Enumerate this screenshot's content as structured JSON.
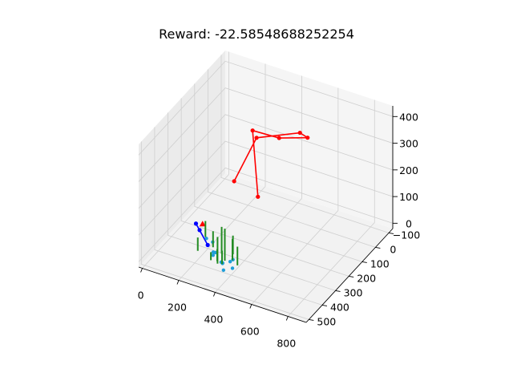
{
  "figure": {
    "title": "Reward: -22.58548688252254"
  },
  "chart_data": {
    "type": "scatter3d",
    "title": "Reward: -22.58548688252254",
    "x_ticks": [
      "0",
      "200",
      "400",
      "600",
      "800"
    ],
    "y_ticks": [
      "−100",
      "0",
      "100",
      "200",
      "300",
      "400",
      "500"
    ],
    "z_ticks": [
      "0",
      "100",
      "200",
      "300",
      "400"
    ],
    "xlim": [
      -20,
      900
    ],
    "ylim": [
      -130,
      520
    ],
    "zlim": [
      -20,
      440
    ],
    "grid": true,
    "series": [
      {
        "kind": "line",
        "color": "#ff0000",
        "points": [
          [
            380,
            350,
            300
          ],
          [
            430,
            250,
            420
          ],
          [
            500,
            20,
            330
          ],
          [
            520,
            -10,
            300
          ],
          [
            360,
            -15,
            260
          ],
          [
            240,
            20,
            280
          ],
          [
            240,
            -20,
            10
          ]
        ]
      },
      {
        "kind": "line",
        "color": "#0000ff",
        "points": [
          [
            280,
            500,
            200
          ],
          [
            330,
            480,
            120
          ],
          [
            300,
            500,
            180
          ]
        ]
      },
      {
        "kind": "marker",
        "color": "#ff0000",
        "marker": "triangle",
        "points": [
          [
            320,
            505,
            210
          ]
        ]
      },
      {
        "kind": "scatter",
        "color": "#1f9ed8",
        "points": [
          [
            330,
            490,
            150
          ],
          [
            360,
            480,
            100
          ],
          [
            330,
            440,
            60
          ],
          [
            360,
            420,
            30
          ],
          [
            380,
            430,
            10
          ],
          [
            400,
            390,
            0
          ],
          [
            360,
            410,
            20
          ],
          [
            390,
            450,
            50
          ],
          [
            350,
            470,
            130
          ],
          [
            410,
            400,
            40
          ],
          [
            380,
            380,
            15
          ],
          [
            350,
            450,
            80
          ]
        ]
      },
      {
        "kind": "segments",
        "color": "#228b22",
        "segments": [
          [
            [
              340,
              420,
              20
            ],
            [
              340,
              420,
              120
            ]
          ],
          [
            [
              310,
              470,
              140
            ],
            [
              310,
              470,
              200
            ]
          ],
          [
            [
              330,
              440,
              90
            ],
            [
              330,
              440,
              150
            ]
          ],
          [
            [
              380,
              420,
              40
            ],
            [
              380,
              420,
              160
            ]
          ],
          [
            [
              400,
              390,
              30
            ],
            [
              400,
              390,
              110
            ]
          ],
          [
            [
              370,
              430,
              70
            ],
            [
              370,
              430,
              170
            ]
          ],
          [
            [
              420,
              380,
              10
            ],
            [
              420,
              380,
              80
            ]
          ],
          [
            [
              290,
              500,
              100
            ],
            [
              290,
              500,
              150
            ]
          ],
          [
            [
              340,
              470,
              60
            ],
            [
              340,
              470,
              90
            ]
          ],
          [
            [
              360,
              450,
              50
            ],
            [
              360,
              450,
              95
            ]
          ],
          [
            [
              410,
              400,
              60
            ],
            [
              410,
              400,
              130
            ]
          ],
          [
            [
              350,
              400,
              10
            ],
            [
              350,
              400,
              60
            ]
          ]
        ]
      }
    ]
  }
}
